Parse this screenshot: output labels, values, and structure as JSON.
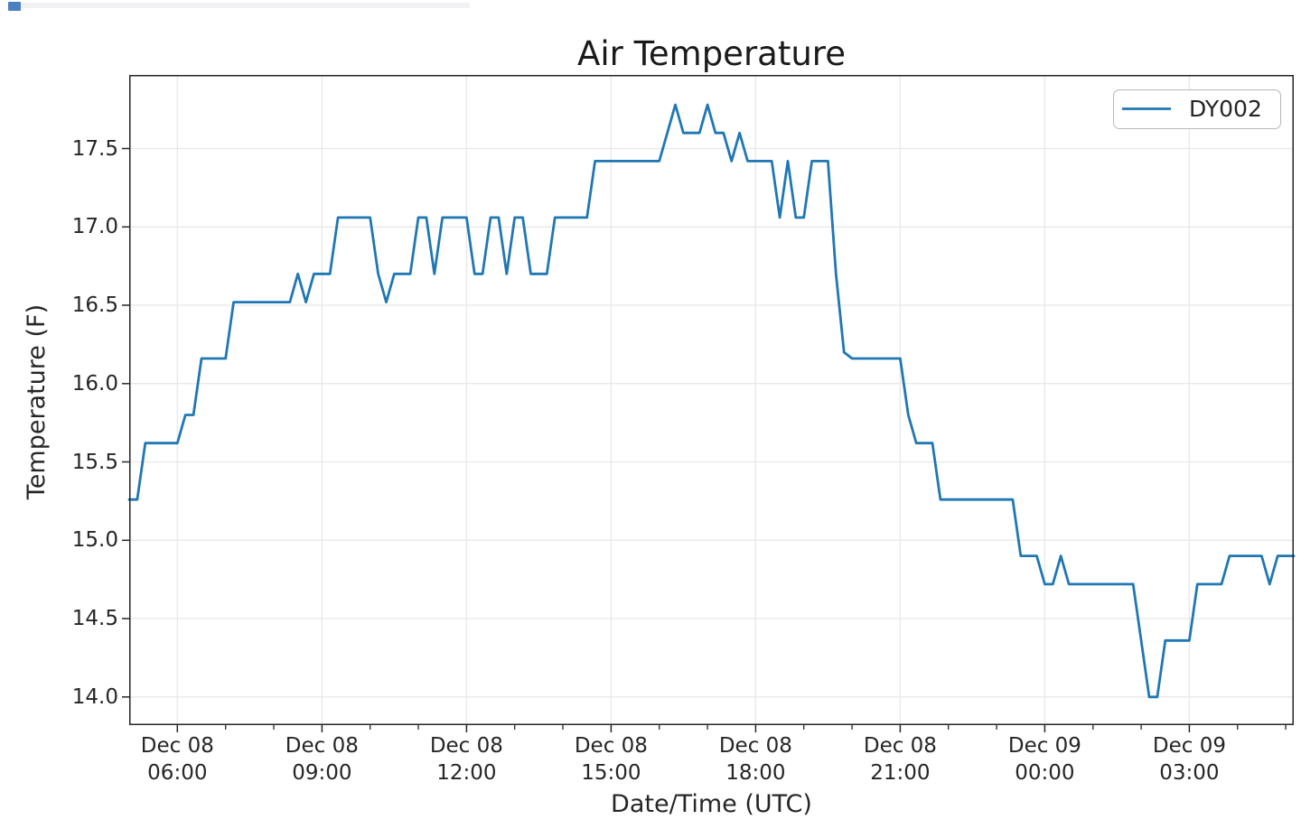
{
  "page": {
    "background": "#ffffff",
    "top_strip_color": "#f2f2f4",
    "top_chip_color": "#4a80c0"
  },
  "chart_data": {
    "type": "line",
    "title": "Air Temperature",
    "xlabel": "Date/Time (UTC)",
    "ylabel": "Temperature (F)",
    "grid": true,
    "legend": {
      "position": "upper right",
      "entries": [
        "DY002"
      ]
    },
    "colors": {
      "line": "#1f77b4",
      "grid": "#e8e8e8",
      "spine": "#262626",
      "tick": "#262626",
      "text": "#262626",
      "legend_border": "#b8b8b8"
    },
    "x_axis": {
      "unit": "minutes since Dec 08 00:00 UTC",
      "xlim": [
        300,
        1750
      ],
      "start_label": "Dec 08 05:00",
      "end_label": "Dec 09 05:10",
      "minor_tick_every_minutes": 60,
      "major_ticks": [
        {
          "minutes": 360,
          "line1": "Dec 08",
          "line2": "06:00"
        },
        {
          "minutes": 540,
          "line1": "Dec 08",
          "line2": "09:00"
        },
        {
          "minutes": 720,
          "line1": "Dec 08",
          "line2": "12:00"
        },
        {
          "minutes": 900,
          "line1": "Dec 08",
          "line2": "15:00"
        },
        {
          "minutes": 1080,
          "line1": "Dec 08",
          "line2": "18:00"
        },
        {
          "minutes": 1260,
          "line1": "Dec 08",
          "line2": "21:00"
        },
        {
          "minutes": 1440,
          "line1": "Dec 09",
          "line2": "00:00"
        },
        {
          "minutes": 1620,
          "line1": "Dec 09",
          "line2": "03:00"
        }
      ]
    },
    "y_axis": {
      "ylim": [
        13.82,
        17.97
      ],
      "ticks": [
        {
          "value": 17.5,
          "label": "17.5"
        },
        {
          "value": 17.0,
          "label": "17.0"
        },
        {
          "value": 16.5,
          "label": "16.5"
        },
        {
          "value": 16.0,
          "label": "16.0"
        },
        {
          "value": 15.5,
          "label": "15.5"
        },
        {
          "value": 15.0,
          "label": "15.0"
        },
        {
          "value": 14.5,
          "label": "14.5"
        },
        {
          "value": 14.0,
          "label": "14.0"
        }
      ]
    },
    "series": [
      {
        "name": "DY002",
        "color": "#1f77b4",
        "start_minutes": 300,
        "interval_minutes": 10,
        "values": [
          15.26,
          15.26,
          15.62,
          15.62,
          15.62,
          15.62,
          15.62,
          15.8,
          15.8,
          16.16,
          16.16,
          16.16,
          16.16,
          16.52,
          16.52,
          16.52,
          16.52,
          16.52,
          16.52,
          16.52,
          16.52,
          16.7,
          16.52,
          16.7,
          16.7,
          16.7,
          17.06,
          17.06,
          17.06,
          17.06,
          17.06,
          16.7,
          16.52,
          16.7,
          16.7,
          16.7,
          17.06,
          17.06,
          16.7,
          17.06,
          17.06,
          17.06,
          17.06,
          16.7,
          16.7,
          17.06,
          17.06,
          16.7,
          17.06,
          17.06,
          16.7,
          16.7,
          16.7,
          17.06,
          17.06,
          17.06,
          17.06,
          17.06,
          17.42,
          17.42,
          17.42,
          17.42,
          17.42,
          17.42,
          17.42,
          17.42,
          17.42,
          17.6,
          17.78,
          17.6,
          17.6,
          17.6,
          17.78,
          17.6,
          17.6,
          17.42,
          17.6,
          17.42,
          17.42,
          17.42,
          17.42,
          17.06,
          17.42,
          17.06,
          17.06,
          17.42,
          17.42,
          17.42,
          16.7,
          16.2,
          16.16,
          16.16,
          16.16,
          16.16,
          16.16,
          16.16,
          16.16,
          15.8,
          15.62,
          15.62,
          15.62,
          15.26,
          15.26,
          15.26,
          15.26,
          15.26,
          15.26,
          15.26,
          15.26,
          15.26,
          15.26,
          14.9,
          14.9,
          14.9,
          14.72,
          14.72,
          14.9,
          14.72,
          14.72,
          14.72,
          14.72,
          14.72,
          14.72,
          14.72,
          14.72,
          14.72,
          14.36,
          14.0,
          14.0,
          14.36,
          14.36,
          14.36,
          14.36,
          14.72,
          14.72,
          14.72,
          14.72,
          14.9,
          14.9,
          14.9,
          14.9,
          14.9,
          14.72,
          14.9,
          14.9,
          14.9
        ]
      }
    ]
  }
}
